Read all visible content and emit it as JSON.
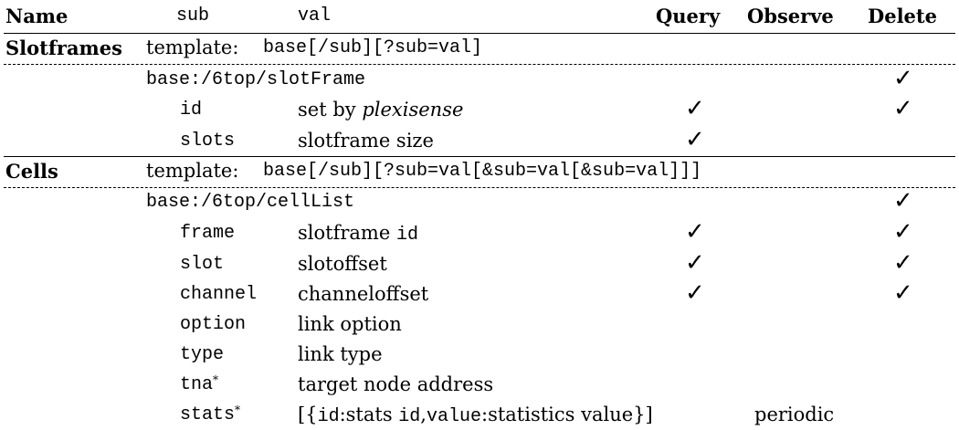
{
  "table": {
    "headers": {
      "name": "Name",
      "sub": "sub",
      "val": "val",
      "query": "Query",
      "observe": "Observe",
      "delete": "Delete"
    },
    "sections": [
      {
        "name": "Slotframes",
        "template_label": "template:",
        "template": "base[/sub][?sub=val]",
        "resource": "base:/6top/slotFrame",
        "resource_delete": "✓",
        "rows": [
          {
            "sub": "id",
            "val_text": "set by",
            "val_italic": "plexisense",
            "query": "✓",
            "delete": "✓"
          },
          {
            "sub": "slots",
            "val_text": "slotframe size",
            "query": "✓"
          }
        ]
      },
      {
        "name": "Cells",
        "template_label": "template:",
        "template": "base[/sub][?sub=val[&sub=val[&sub=val]]]",
        "resource": "base:/6top/cellList",
        "resource_delete": "✓",
        "rows": [
          {
            "sub": "frame",
            "val_text": "slotframe",
            "val_mono": "id",
            "query": "✓",
            "delete": "✓"
          },
          {
            "sub": "slot",
            "val_text": "slotoffset",
            "query": "✓",
            "delete": "✓"
          },
          {
            "sub": "channel",
            "val_text": "channeloffset",
            "query": "✓",
            "delete": "✓"
          },
          {
            "sub": "option",
            "val_text": "link option"
          },
          {
            "sub": "type",
            "val_text": "link type"
          },
          {
            "sub": "tna",
            "sub_mark": "*",
            "val_text": "target node address"
          },
          {
            "sub": "stats",
            "sub_mark": "*",
            "val_parts": [
              "[{",
              "id",
              ":stats ",
              "id",
              ",",
              "value",
              ":statistics value}]"
            ],
            "observe": "periodic"
          }
        ]
      }
    ]
  }
}
